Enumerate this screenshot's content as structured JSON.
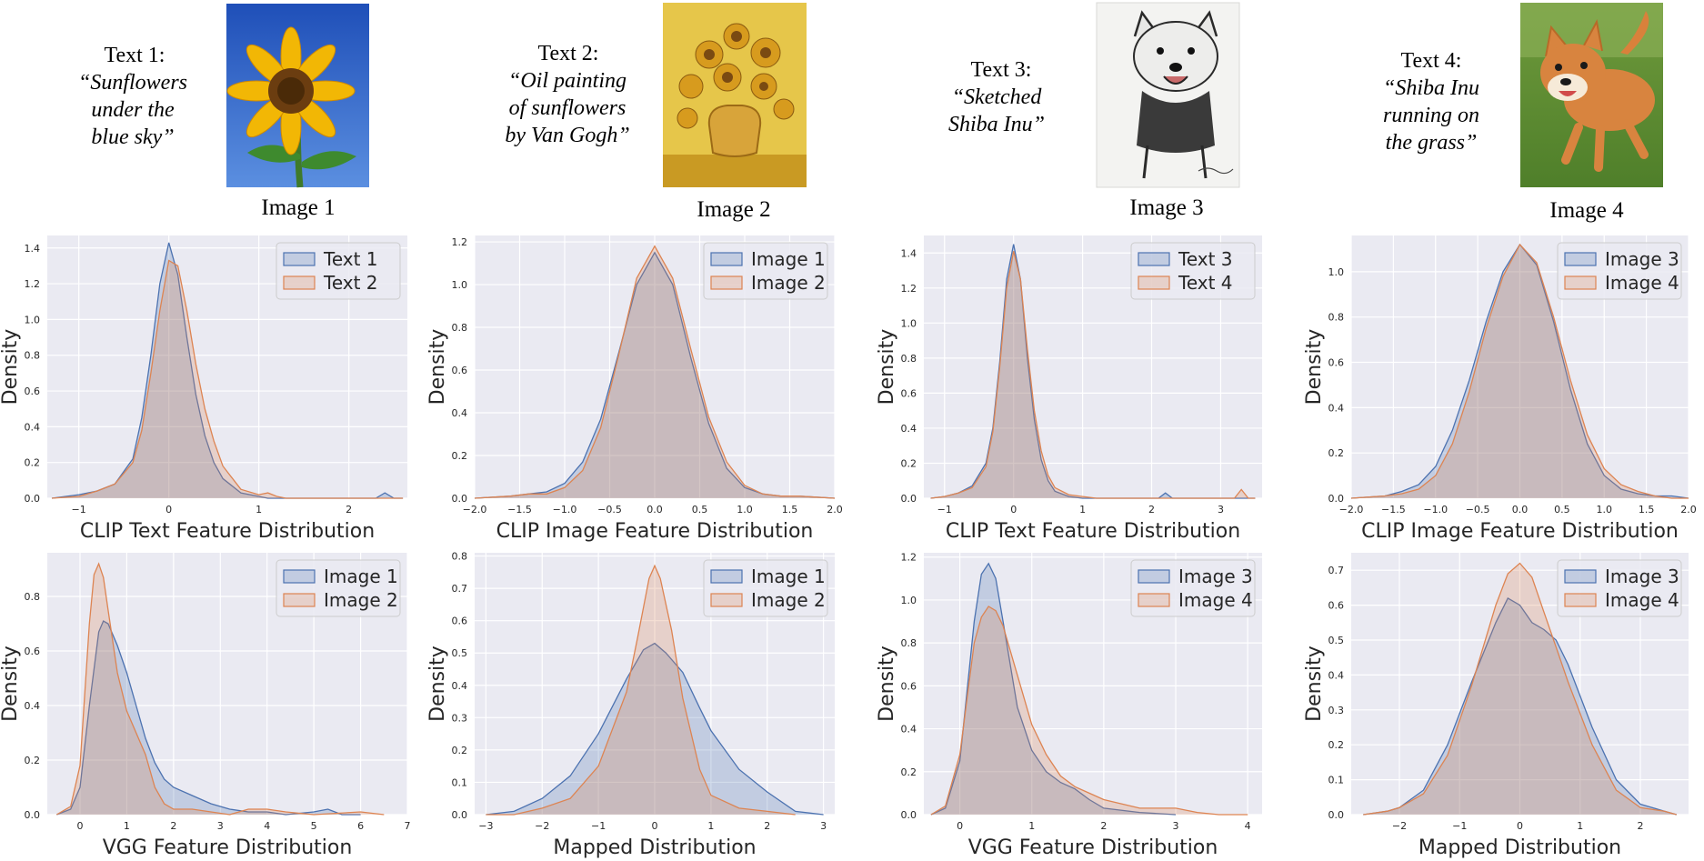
{
  "header": [
    {
      "label": "Text 1:",
      "quote": [
        "“Sunflowers",
        "under the",
        "blue sky”"
      ],
      "image_caption": "Image 1",
      "thumbnail": "sunflower-photo"
    },
    {
      "label": "Text 2:",
      "quote": [
        "“Oil painting",
        "of sunflowers",
        "by Van Gogh”"
      ],
      "image_caption": "Image 2",
      "thumbnail": "van-gogh-sunflowers-painting"
    },
    {
      "label": "Text 3:",
      "quote": [
        "“Sketched",
        "Shiba Inu”"
      ],
      "image_caption": "Image 3",
      "thumbnail": "shiba-inu-sketch"
    },
    {
      "label": "Text 4:",
      "quote": [
        "“Shiba Inu",
        "running on",
        "the grass”"
      ],
      "image_caption": "Image 4",
      "thumbnail": "shiba-inu-photo"
    }
  ],
  "colors": {
    "blue": "#4c72b0",
    "orange": "#dd8452",
    "panel_bg": "#eaeaf2",
    "grid": "#ffffff"
  },
  "chart_data": [
    {
      "type": "area",
      "xlabel": "CLIP Text Feature Distribution",
      "ylabel": "Density",
      "xlim": [
        -1.35,
        2.65
      ],
      "ylim": [
        0,
        1.47
      ],
      "xticks": [
        -1,
        0,
        1,
        2
      ],
      "yticks": [
        0.0,
        0.2,
        0.4,
        0.6,
        0.8,
        1.0,
        1.2,
        1.4
      ],
      "legend": "top-right",
      "series": [
        {
          "name": "Text 1",
          "x": [
            -1.3,
            -1.0,
            -0.8,
            -0.6,
            -0.4,
            -0.3,
            -0.2,
            -0.1,
            0.0,
            0.1,
            0.2,
            0.3,
            0.4,
            0.5,
            0.6,
            0.8,
            1.0,
            1.1,
            1.2,
            2.3,
            2.4,
            2.5,
            2.6
          ],
          "y": [
            0.0,
            0.02,
            0.04,
            0.08,
            0.22,
            0.45,
            0.8,
            1.2,
            1.43,
            1.25,
            0.9,
            0.58,
            0.35,
            0.2,
            0.11,
            0.03,
            0.01,
            0.0,
            0.0,
            0.0,
            0.03,
            0.0,
            0.0
          ]
        },
        {
          "name": "Text 2",
          "x": [
            -1.3,
            -1.0,
            -0.8,
            -0.6,
            -0.4,
            -0.3,
            -0.2,
            -0.1,
            0.0,
            0.1,
            0.2,
            0.3,
            0.4,
            0.5,
            0.6,
            0.8,
            1.0,
            1.1,
            1.2,
            1.3,
            2.6
          ],
          "y": [
            0.0,
            0.01,
            0.04,
            0.08,
            0.2,
            0.38,
            0.7,
            1.05,
            1.33,
            1.3,
            1.05,
            0.75,
            0.5,
            0.32,
            0.18,
            0.05,
            0.02,
            0.03,
            0.01,
            0.0,
            0.0
          ]
        }
      ]
    },
    {
      "type": "area",
      "xlabel": "CLIP Image Feature Distribution",
      "ylabel": "Density",
      "xlim": [
        -2.0,
        2.0
      ],
      "ylim": [
        0,
        1.23
      ],
      "xticks": [
        -2.0,
        -1.5,
        -1.0,
        -0.5,
        0.0,
        0.5,
        1.0,
        1.5,
        2.0
      ],
      "yticks": [
        0.0,
        0.2,
        0.4,
        0.6,
        0.8,
        1.0,
        1.2
      ],
      "legend": "top-right",
      "series": [
        {
          "name": "Image 1",
          "x": [
            -2.0,
            -1.6,
            -1.4,
            -1.2,
            -1.0,
            -0.8,
            -0.6,
            -0.4,
            -0.2,
            0.0,
            0.2,
            0.4,
            0.6,
            0.8,
            1.0,
            1.2,
            1.4,
            1.6,
            2.0
          ],
          "y": [
            0.0,
            0.01,
            0.02,
            0.03,
            0.07,
            0.17,
            0.37,
            0.68,
            1.0,
            1.15,
            1.0,
            0.66,
            0.35,
            0.14,
            0.05,
            0.02,
            0.01,
            0.01,
            0.0
          ]
        },
        {
          "name": "Image 2",
          "x": [
            -2.0,
            -1.6,
            -1.4,
            -1.2,
            -1.0,
            -0.8,
            -0.6,
            -0.4,
            -0.2,
            0.0,
            0.2,
            0.4,
            0.6,
            0.8,
            1.0,
            1.2,
            1.4,
            1.6,
            2.0
          ],
          "y": [
            0.0,
            0.01,
            0.02,
            0.02,
            0.05,
            0.13,
            0.33,
            0.67,
            1.03,
            1.18,
            1.03,
            0.7,
            0.38,
            0.17,
            0.06,
            0.02,
            0.01,
            0.01,
            0.0
          ]
        }
      ]
    },
    {
      "type": "area",
      "xlabel": "CLIP Text Feature Distribution",
      "ylabel": "Density",
      "xlim": [
        -1.3,
        3.6
      ],
      "ylim": [
        0,
        1.5
      ],
      "xticks": [
        -1,
        0,
        1,
        2,
        3
      ],
      "yticks": [
        0.0,
        0.2,
        0.4,
        0.6,
        0.8,
        1.0,
        1.2,
        1.4
      ],
      "legend": "top-right",
      "series": [
        {
          "name": "Text 3",
          "x": [
            -1.2,
            -1.0,
            -0.8,
            -0.6,
            -0.4,
            -0.3,
            -0.2,
            -0.1,
            0.0,
            0.1,
            0.2,
            0.3,
            0.4,
            0.5,
            0.6,
            0.8,
            1.0,
            1.2,
            2.1,
            2.2,
            2.3,
            3.3,
            3.5
          ],
          "y": [
            0.0,
            0.01,
            0.03,
            0.07,
            0.2,
            0.4,
            0.78,
            1.25,
            1.45,
            1.25,
            0.8,
            0.45,
            0.22,
            0.1,
            0.04,
            0.01,
            0.0,
            0.0,
            0.0,
            0.03,
            0.0,
            0.0,
            0.0
          ]
        },
        {
          "name": "Text 4",
          "x": [
            -1.2,
            -1.0,
            -0.8,
            -0.6,
            -0.4,
            -0.3,
            -0.2,
            -0.1,
            0.0,
            0.1,
            0.2,
            0.3,
            0.4,
            0.5,
            0.6,
            0.8,
            1.0,
            1.2,
            3.2,
            3.3,
            3.4,
            3.5
          ],
          "y": [
            0.0,
            0.01,
            0.03,
            0.06,
            0.18,
            0.38,
            0.75,
            1.2,
            1.41,
            1.25,
            0.85,
            0.5,
            0.27,
            0.13,
            0.06,
            0.02,
            0.01,
            0.0,
            0.0,
            0.05,
            0.0,
            0.0
          ]
        }
      ]
    },
    {
      "type": "area",
      "xlabel": "CLIP Image Feature Distribution",
      "ylabel": "Density",
      "xlim": [
        -2.0,
        2.0
      ],
      "ylim": [
        0,
        1.16
      ],
      "xticks": [
        -2.0,
        -1.5,
        -1.0,
        -0.5,
        0.0,
        0.5,
        1.0,
        1.5,
        2.0
      ],
      "yticks": [
        0.0,
        0.2,
        0.4,
        0.6,
        0.8,
        1.0
      ],
      "legend": "top-right",
      "series": [
        {
          "name": "Image 3",
          "x": [
            -2.0,
            -1.6,
            -1.4,
            -1.2,
            -1.0,
            -0.8,
            -0.6,
            -0.4,
            -0.2,
            0.0,
            0.2,
            0.4,
            0.6,
            0.8,
            1.0,
            1.2,
            1.4,
            1.6,
            1.8,
            2.0
          ],
          "y": [
            0.0,
            0.01,
            0.03,
            0.06,
            0.14,
            0.3,
            0.52,
            0.78,
            1.0,
            1.12,
            1.03,
            0.78,
            0.48,
            0.24,
            0.1,
            0.04,
            0.02,
            0.01,
            0.01,
            0.0
          ]
        },
        {
          "name": "Image 4",
          "x": [
            -2.0,
            -1.6,
            -1.4,
            -1.2,
            -1.0,
            -0.8,
            -0.6,
            -0.4,
            -0.2,
            0.0,
            0.2,
            0.4,
            0.6,
            0.8,
            1.0,
            1.2,
            1.4,
            1.6,
            1.8,
            2.0
          ],
          "y": [
            0.0,
            0.01,
            0.02,
            0.04,
            0.1,
            0.24,
            0.47,
            0.75,
            0.98,
            1.12,
            1.04,
            0.8,
            0.52,
            0.28,
            0.13,
            0.06,
            0.03,
            0.01,
            0.0,
            0.0
          ]
        }
      ]
    },
    {
      "type": "area",
      "xlabel": "VGG Feature Distribution",
      "ylabel": "Density",
      "xlim": [
        -0.7,
        7.0
      ],
      "ylim": [
        0,
        0.96
      ],
      "xticks": [
        0,
        1,
        2,
        3,
        4,
        5,
        6,
        7
      ],
      "yticks": [
        0.0,
        0.2,
        0.4,
        0.6,
        0.8
      ],
      "legend": "top-right",
      "series": [
        {
          "name": "Image 1",
          "x": [
            -0.5,
            -0.2,
            0.0,
            0.2,
            0.4,
            0.5,
            0.6,
            0.8,
            1.0,
            1.2,
            1.4,
            1.6,
            1.8,
            2.0,
            2.4,
            2.8,
            3.2,
            3.6,
            4.0,
            4.4,
            5.0,
            5.3,
            5.6,
            6.0
          ],
          "y": [
            0.0,
            0.02,
            0.1,
            0.4,
            0.67,
            0.71,
            0.7,
            0.62,
            0.52,
            0.4,
            0.28,
            0.19,
            0.13,
            0.1,
            0.07,
            0.04,
            0.02,
            0.01,
            0.01,
            0.0,
            0.01,
            0.02,
            0.0,
            0.0
          ]
        },
        {
          "name": "Image 2",
          "x": [
            -0.5,
            -0.2,
            0.0,
            0.2,
            0.3,
            0.4,
            0.5,
            0.6,
            0.8,
            1.0,
            1.2,
            1.4,
            1.6,
            1.8,
            2.0,
            2.4,
            2.8,
            3.2,
            3.6,
            4.0,
            4.4,
            5.0,
            6.0,
            6.5
          ],
          "y": [
            0.0,
            0.03,
            0.18,
            0.7,
            0.88,
            0.92,
            0.87,
            0.75,
            0.52,
            0.38,
            0.3,
            0.22,
            0.1,
            0.04,
            0.02,
            0.02,
            0.01,
            0.0,
            0.02,
            0.02,
            0.01,
            0.0,
            0.01,
            0.0
          ]
        }
      ]
    },
    {
      "type": "area",
      "xlabel": "Mapped Distribution",
      "ylabel": "Density",
      "xlim": [
        -3.2,
        3.2
      ],
      "ylim": [
        0,
        0.81
      ],
      "xticks": [
        -3,
        -2,
        -1,
        0,
        1,
        2,
        3
      ],
      "yticks": [
        0.0,
        0.1,
        0.2,
        0.3,
        0.4,
        0.5,
        0.6,
        0.7,
        0.8
      ],
      "legend": "top-right",
      "series": [
        {
          "name": "Image 1",
          "x": [
            -3.0,
            -2.5,
            -2.0,
            -1.5,
            -1.0,
            -0.5,
            -0.2,
            0.0,
            0.2,
            0.5,
            0.8,
            1.0,
            1.5,
            2.0,
            2.5,
            3.0
          ],
          "y": [
            0.0,
            0.01,
            0.05,
            0.12,
            0.25,
            0.42,
            0.51,
            0.53,
            0.5,
            0.44,
            0.33,
            0.26,
            0.14,
            0.07,
            0.01,
            0.0
          ]
        },
        {
          "name": "Image 2",
          "x": [
            -3.0,
            -2.5,
            -2.0,
            -1.5,
            -1.0,
            -0.5,
            -0.3,
            -0.1,
            0.0,
            0.1,
            0.3,
            0.5,
            0.8,
            1.0,
            1.5,
            2.0,
            2.5
          ],
          "y": [
            0.0,
            0.0,
            0.02,
            0.05,
            0.15,
            0.38,
            0.55,
            0.73,
            0.77,
            0.73,
            0.57,
            0.36,
            0.14,
            0.06,
            0.02,
            0.01,
            0.0
          ]
        }
      ]
    },
    {
      "type": "area",
      "xlabel": "VGG Feature Distribution",
      "ylabel": "Density",
      "xlim": [
        -0.5,
        4.2
      ],
      "ylim": [
        0,
        1.22
      ],
      "xticks": [
        0,
        1,
        2,
        3,
        4
      ],
      "yticks": [
        0.0,
        0.2,
        0.4,
        0.6,
        0.8,
        1.0,
        1.2
      ],
      "legend": "top-right",
      "series": [
        {
          "name": "Image 3",
          "x": [
            -0.4,
            -0.2,
            0.0,
            0.2,
            0.3,
            0.4,
            0.5,
            0.6,
            0.8,
            1.0,
            1.2,
            1.4,
            1.6,
            1.8,
            2.0,
            2.5,
            3.0
          ],
          "y": [
            0.0,
            0.03,
            0.25,
            0.9,
            1.12,
            1.17,
            1.1,
            0.9,
            0.5,
            0.3,
            0.2,
            0.15,
            0.12,
            0.07,
            0.03,
            0.01,
            0.0
          ]
        },
        {
          "name": "Image 4",
          "x": [
            -0.4,
            -0.2,
            0.0,
            0.2,
            0.3,
            0.4,
            0.5,
            0.6,
            0.8,
            1.0,
            1.2,
            1.4,
            1.6,
            1.8,
            2.0,
            2.5,
            3.0,
            3.3,
            3.6,
            4.0
          ],
          "y": [
            0.0,
            0.04,
            0.28,
            0.8,
            0.92,
            0.97,
            0.95,
            0.88,
            0.65,
            0.42,
            0.28,
            0.18,
            0.13,
            0.1,
            0.07,
            0.03,
            0.03,
            0.01,
            0.0,
            0.0
          ]
        }
      ]
    },
    {
      "type": "area",
      "xlabel": "Mapped Distribution",
      "ylabel": "Density",
      "xlim": [
        -2.8,
        2.8
      ],
      "ylim": [
        0,
        0.75
      ],
      "xticks": [
        -2,
        -1,
        0,
        1,
        2
      ],
      "yticks": [
        0.0,
        0.1,
        0.2,
        0.3,
        0.4,
        0.5,
        0.6,
        0.7
      ],
      "legend": "top-right",
      "series": [
        {
          "name": "Image 3",
          "x": [
            -2.6,
            -2.2,
            -2.0,
            -1.6,
            -1.2,
            -0.8,
            -0.4,
            -0.2,
            0.0,
            0.2,
            0.4,
            0.6,
            0.8,
            1.2,
            1.6,
            2.0,
            2.4,
            2.6
          ],
          "y": [
            0.0,
            0.01,
            0.02,
            0.07,
            0.2,
            0.38,
            0.55,
            0.62,
            0.6,
            0.55,
            0.53,
            0.5,
            0.43,
            0.25,
            0.1,
            0.03,
            0.01,
            0.0
          ]
        },
        {
          "name": "Image 4",
          "x": [
            -2.6,
            -2.2,
            -2.0,
            -1.6,
            -1.2,
            -0.8,
            -0.4,
            -0.2,
            0.0,
            0.2,
            0.4,
            0.6,
            0.8,
            1.2,
            1.6,
            2.0,
            2.4,
            2.6
          ],
          "y": [
            0.0,
            0.01,
            0.02,
            0.06,
            0.17,
            0.37,
            0.6,
            0.69,
            0.72,
            0.68,
            0.58,
            0.48,
            0.38,
            0.2,
            0.07,
            0.02,
            0.01,
            0.0
          ]
        }
      ]
    }
  ]
}
